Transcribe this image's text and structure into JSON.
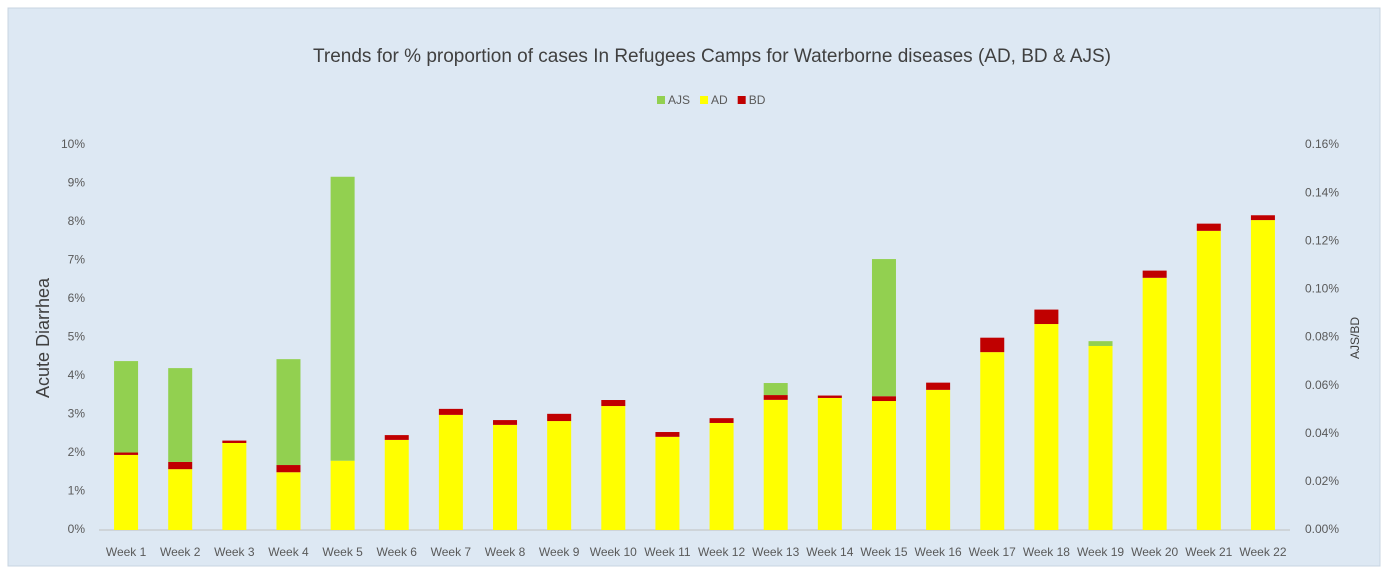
{
  "chart_data": {
    "type": "stacked_bar",
    "title": "Trends for % proportion of cases In Refugees Camps for Waterborne diseases (AD, BD & AJS)",
    "y_label": "Acute Diarrhea",
    "y2_label": "AJS/BD",
    "categories": [
      "Week 1",
      "Week 2",
      "Week 3",
      "Week 4",
      "Week 5",
      "Week 6",
      "Week 7",
      "Week 8",
      "Week 9",
      "Week 10",
      "Week 11",
      "Week 12",
      "Week 13",
      "Week 14",
      "Week 15",
      "Week 16",
      "Week 17",
      "Week 18",
      "Week 19",
      "Week 20",
      "Week 21",
      "Week 22"
    ],
    "series": [
      {
        "name": "AD",
        "color": "#ffff00",
        "values": [
          1.95,
          1.58,
          2.26,
          1.5,
          1.8,
          2.34,
          2.99,
          2.73,
          2.83,
          3.22,
          2.42,
          2.78,
          3.38,
          3.43,
          3.35,
          3.64,
          4.62,
          5.35,
          4.78,
          6.55,
          7.77,
          8.05
        ]
      },
      {
        "name": "BD",
        "color": "#c00000",
        "axis": "y2",
        "values": [
          0.001,
          0.003,
          0.001,
          0.003,
          0,
          0.002,
          0.0025,
          0.002,
          0.003,
          0.0025,
          0.002,
          0.002,
          0.002,
          0.001,
          0.002,
          0.003,
          0.006,
          0.006,
          0,
          0.003,
          0.003,
          0.002
        ]
      },
      {
        "name": "AJS",
        "color": "#92d050",
        "axis": "y2",
        "values": [
          0.038,
          0.039,
          0,
          0.044,
          0.118,
          0,
          0,
          0,
          0,
          0,
          0,
          0,
          0.005,
          0,
          0.057,
          0,
          0,
          0,
          0.002,
          0,
          0,
          0
        ]
      }
    ],
    "ylim": [
      0,
      10
    ],
    "yticks": [
      {
        "value": 0,
        "label": "0%"
      },
      {
        "value": 1,
        "label": "1%"
      },
      {
        "value": 2,
        "label": "2%"
      },
      {
        "value": 3,
        "label": "3%"
      },
      {
        "value": 4,
        "label": "4%"
      },
      {
        "value": 5,
        "label": "5%"
      },
      {
        "value": 6,
        "label": "6%"
      },
      {
        "value": 7,
        "label": "7%"
      },
      {
        "value": 8,
        "label": "8%"
      },
      {
        "value": 9,
        "label": "9%"
      },
      {
        "value": 10,
        "label": "10%"
      }
    ],
    "y2lim": [
      0,
      0.16
    ],
    "y2ticks": [
      {
        "value": 0,
        "label": "0.00%"
      },
      {
        "value": 0.02,
        "label": "0.02%"
      },
      {
        "value": 0.04,
        "label": "0.04%"
      },
      {
        "value": 0.06,
        "label": "0.06%"
      },
      {
        "value": 0.08,
        "label": "0.08%"
      },
      {
        "value": 0.1,
        "label": "0.10%"
      },
      {
        "value": 0.12,
        "label": "0.12%"
      },
      {
        "value": 0.14,
        "label": "0.14%"
      },
      {
        "value": 0.16,
        "label": "0.16%"
      }
    ],
    "legend": "top",
    "grid": false
  }
}
